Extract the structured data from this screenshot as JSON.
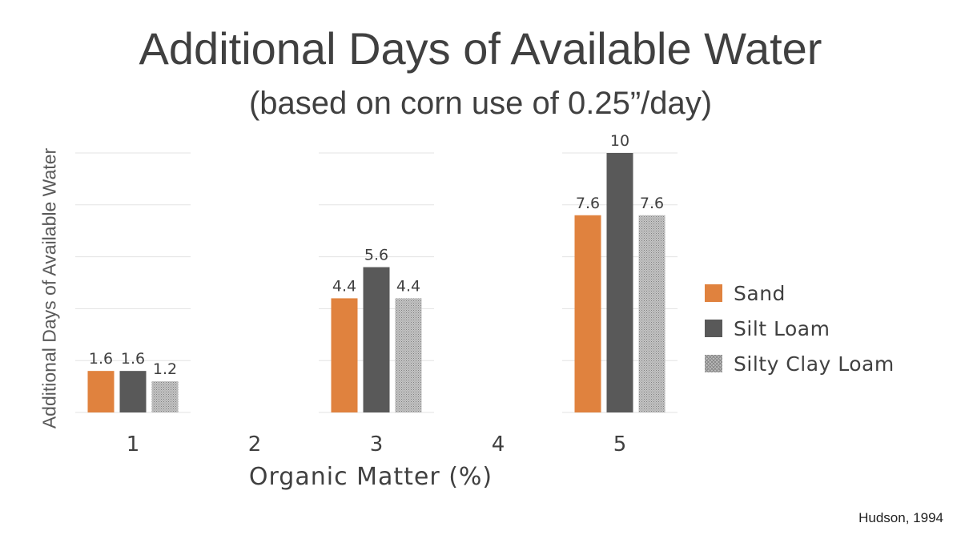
{
  "chart_data": {
    "type": "bar",
    "title": "Additional Days of Available Water",
    "subtitle": "(based on corn use of 0.25”/day)",
    "xlabel": "Organic Matter (%)",
    "ylabel": "Additional Days of Available Water",
    "categories": [
      "1",
      "2",
      "3",
      "4",
      "5"
    ],
    "series": [
      {
        "name": "Sand",
        "color": "#E0823E",
        "values": [
          1.6,
          null,
          4.4,
          null,
          7.6
        ]
      },
      {
        "name": "Silt Loam",
        "color": "#595959",
        "values": [
          1.6,
          null,
          5.6,
          null,
          10
        ]
      },
      {
        "name": "Silty Clay Loam",
        "color": "#B0B0B0",
        "pattern": "hatch",
        "values": [
          1.2,
          null,
          4.4,
          null,
          7.6
        ]
      }
    ],
    "value_labels": [
      [
        "1.6",
        "",
        "4.4",
        "",
        "7.6"
      ],
      [
        "1.6",
        "",
        "5.6",
        "",
        "10"
      ],
      [
        "1.2",
        "",
        "4.4",
        "",
        "7.6"
      ]
    ],
    "ylim": [
      0,
      10
    ],
    "grid": true,
    "legend_position": "right"
  },
  "source": "Hudson, 1994"
}
